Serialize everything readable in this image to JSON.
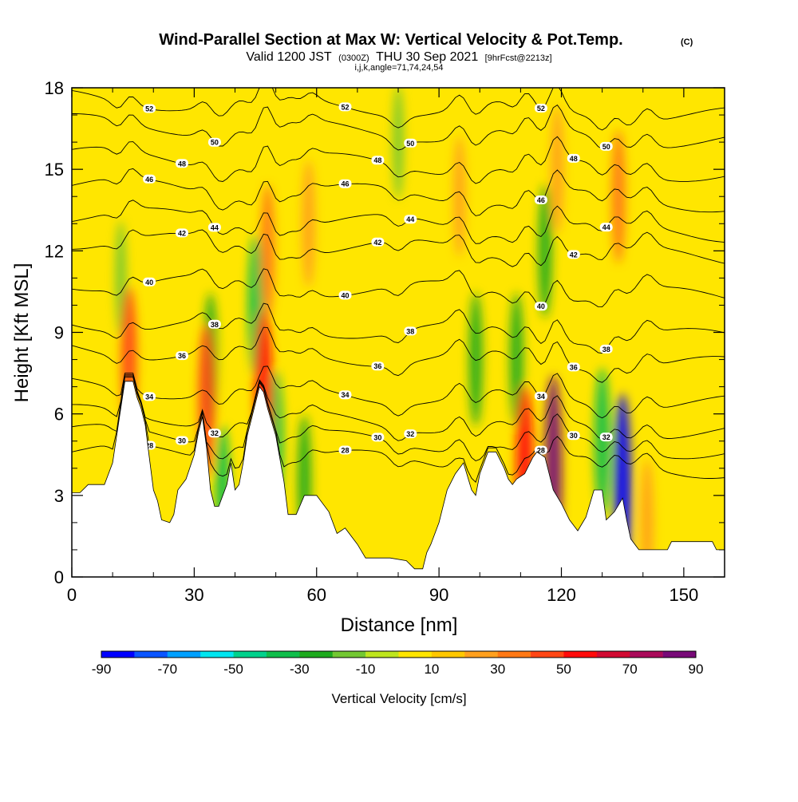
{
  "chart_data": {
    "type": "heatmap",
    "title": "Wind-Parallel Section at Max W: Vertical Velocity & Pot.Temp.",
    "title_mark": "(C)",
    "subtitle": {
      "valid": "Valid 1200 JST",
      "utc": "(0300Z)",
      "date": "THU 30 Sep 2021",
      "forecast": "[9hrFcst@2213z]"
    },
    "subtitle2": "i,j,k,angle=71,74,24,54",
    "xlabel": "Distance [nm]",
    "ylabel": "Height [Kft MSL]",
    "xlim": [
      0,
      160
    ],
    "ylim": [
      0,
      18
    ],
    "x_ticks": [
      "0",
      "30",
      "60",
      "90",
      "120",
      "150"
    ],
    "y_ticks": [
      "0",
      "3",
      "6",
      "9",
      "12",
      "15",
      "18"
    ],
    "colorbar": {
      "label": "Vertical Velocity [cm/s]",
      "range": [
        -90,
        90
      ],
      "tick_labels": [
        "-90",
        "-70",
        "-50",
        "-30",
        "-10",
        "10",
        "30",
        "50",
        "70",
        "90"
      ],
      "colors": [
        "#0000ff",
        "#0a55ff",
        "#00a0ff",
        "#00e6f0",
        "#00d28c",
        "#0fbe4b",
        "#1eaa1e",
        "#73c832",
        "#bee61e",
        "#ffe600",
        "#ffc800",
        "#ffa01e",
        "#ff7814",
        "#ff4614",
        "#ff0a0a",
        "#d20a32",
        "#aa0a5a",
        "#780a78"
      ]
    },
    "terrain_kft": [
      [
        0,
        3.1
      ],
      [
        2,
        3.1
      ],
      [
        4,
        3.4
      ],
      [
        6,
        3.4
      ],
      [
        8,
        3.4
      ],
      [
        10,
        4.2
      ],
      [
        12,
        6.2
      ],
      [
        13,
        7.2
      ],
      [
        15,
        7.2
      ],
      [
        16,
        6.6
      ],
      [
        17,
        6.2
      ],
      [
        18,
        5.6
      ],
      [
        19,
        4.4
      ],
      [
        20,
        3.2
      ],
      [
        21,
        2.8
      ],
      [
        22,
        2.1
      ],
      [
        24,
        2.0
      ],
      [
        25,
        2.3
      ],
      [
        26,
        3.2
      ],
      [
        28,
        3.6
      ],
      [
        30,
        4.5
      ],
      [
        31,
        5.3
      ],
      [
        32,
        5.9
      ],
      [
        33,
        4.8
      ],
      [
        34,
        3.2
      ],
      [
        35,
        2.6
      ],
      [
        36,
        2.6
      ],
      [
        37,
        3.0
      ],
      [
        38,
        3.4
      ],
      [
        39,
        4.2
      ],
      [
        40,
        3.2
      ],
      [
        41,
        3.4
      ],
      [
        42,
        4.2
      ],
      [
        43,
        5.2
      ],
      [
        44,
        5.8
      ],
      [
        45,
        6.4
      ],
      [
        46,
        7.0
      ],
      [
        47,
        6.8
      ],
      [
        48,
        6.2
      ],
      [
        50,
        5.2
      ],
      [
        52,
        3.5
      ],
      [
        53,
        2.3
      ],
      [
        55,
        2.3
      ],
      [
        57,
        3.0
      ],
      [
        60,
        3.0
      ],
      [
        63,
        2.4
      ],
      [
        65,
        1.6
      ],
      [
        67,
        1.8
      ],
      [
        70,
        1.2
      ],
      [
        72,
        0.7
      ],
      [
        78,
        0.7
      ],
      [
        82,
        0.6
      ],
      [
        84,
        0.3
      ],
      [
        86,
        0.3
      ],
      [
        87,
        0.9
      ],
      [
        88,
        1.2
      ],
      [
        90,
        2.0
      ],
      [
        92,
        3.2
      ],
      [
        94,
        3.8
      ],
      [
        96,
        4.2
      ],
      [
        98,
        3.2
      ],
      [
        99,
        3.0
      ],
      [
        100,
        3.8
      ],
      [
        102,
        4.6
      ],
      [
        104,
        4.6
      ],
      [
        106,
        4.0
      ],
      [
        107,
        3.6
      ],
      [
        108,
        3.4
      ],
      [
        109,
        3.6
      ],
      [
        111,
        3.8
      ],
      [
        113,
        4.4
      ],
      [
        114,
        4.6
      ],
      [
        116,
        4.4
      ],
      [
        118,
        3.2
      ],
      [
        120,
        2.7
      ],
      [
        122,
        2.1
      ],
      [
        124,
        1.7
      ],
      [
        126,
        2.2
      ],
      [
        128,
        3.2
      ],
      [
        130,
        3.2
      ],
      [
        131,
        2.1
      ],
      [
        133,
        2.4
      ],
      [
        135,
        2.9
      ],
      [
        136,
        2.1
      ],
      [
        137,
        1.4
      ],
      [
        139,
        1.0
      ],
      [
        146,
        1.0
      ],
      [
        147,
        1.3
      ],
      [
        157,
        1.3
      ],
      [
        158,
        1.0
      ],
      [
        160,
        1.0
      ]
    ],
    "updrafts": [
      {
        "x": 14,
        "z": 8.0,
        "w": 40
      },
      {
        "x": 33,
        "z": 6.5,
        "w": 45
      },
      {
        "x": 47,
        "z": 6.8,
        "w": 55
      },
      {
        "x": 48,
        "z": 12.0,
        "w": 30
      },
      {
        "x": 58,
        "z": 13.0,
        "w": 25
      },
      {
        "x": 95,
        "z": 14.0,
        "w": 20
      },
      {
        "x": 111,
        "z": 4.0,
        "w": 55
      },
      {
        "x": 118,
        "z": 3.8,
        "w": 80
      },
      {
        "x": 119,
        "z": 15.0,
        "w": 25
      },
      {
        "x": 134,
        "z": 14.0,
        "w": 30
      },
      {
        "x": 141,
        "z": 2.0,
        "w": 25
      }
    ],
    "downdrafts": [
      {
        "x": 12,
        "z": 11.0,
        "w": -15
      },
      {
        "x": 34,
        "z": 8.0,
        "w": -30
      },
      {
        "x": 37,
        "z": 3.0,
        "w": -35
      },
      {
        "x": 45,
        "z": 10.0,
        "w": -35
      },
      {
        "x": 50,
        "z": 5.0,
        "w": -35
      },
      {
        "x": 57,
        "z": 3.5,
        "w": -30
      },
      {
        "x": 80,
        "z": 16.0,
        "w": -15
      },
      {
        "x": 99,
        "z": 8.0,
        "w": -30
      },
      {
        "x": 109,
        "z": 8.0,
        "w": -30
      },
      {
        "x": 116,
        "z": 12.0,
        "w": -30
      },
      {
        "x": 130,
        "z": 5.0,
        "w": -40
      },
      {
        "x": 135,
        "z": 3.0,
        "w": -85
      }
    ],
    "theta_contours": [
      {
        "label": "28",
        "base_kft": 4.6
      },
      {
        "label": "30",
        "base_kft": 5.3
      },
      {
        "label": "32",
        "base_kft": 6.0
      },
      {
        "label": "34",
        "base_kft": 7.0
      },
      {
        "label": "36",
        "base_kft": 8.4
      },
      {
        "label": "38",
        "base_kft": 9.4
      },
      {
        "label": "40",
        "base_kft": 10.9
      },
      {
        "label": "42",
        "base_kft": 12.4
      },
      {
        "label": "44",
        "base_kft": 13.3
      },
      {
        "label": "46",
        "base_kft": 14.4
      },
      {
        "label": "48",
        "base_kft": 15.5
      },
      {
        "label": "50",
        "base_kft": 16.7
      },
      {
        "label": "52",
        "base_kft": 17.6
      }
    ]
  }
}
